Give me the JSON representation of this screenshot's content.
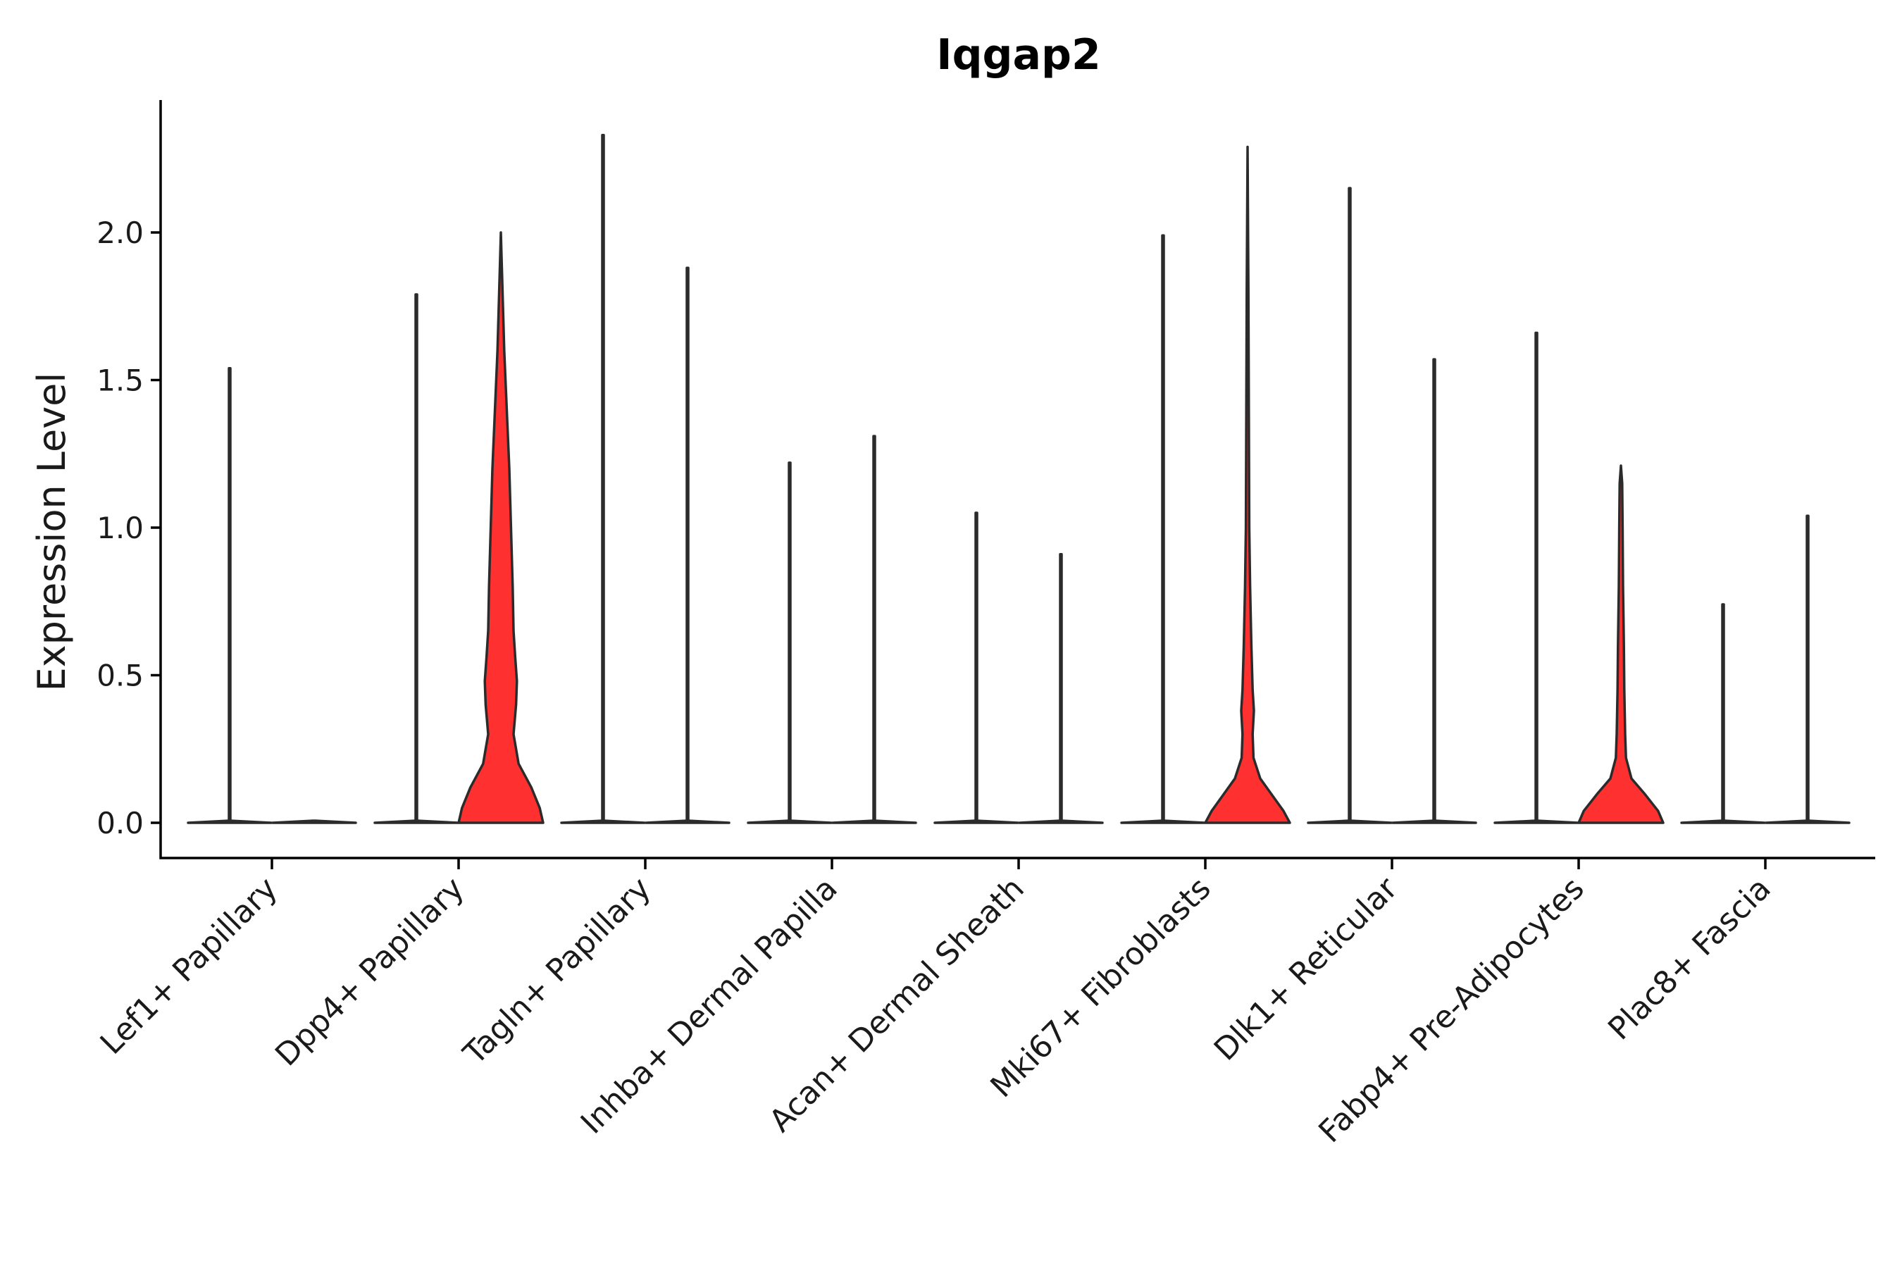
{
  "chart_data": {
    "type": "violin",
    "title": "Iqgap2",
    "xlabel": "",
    "ylabel": "Expression Level",
    "ylim": [
      -0.12,
      2.45
    ],
    "yticks": [
      0.0,
      0.5,
      1.0,
      1.5,
      2.0
    ],
    "ytick_labels": [
      "0.0",
      "0.5",
      "1.0",
      "1.5",
      "2.0"
    ],
    "grid": false,
    "legend": "none",
    "split_note": "each category shows two violins: left = condition A, right = condition B",
    "fill_color_positive": "#ff3030",
    "fill_color_zero": "#ffffff",
    "categories": [
      "Lef1+ Papillary",
      "Dpp4+ Papillary",
      "Tagln+ Papillary",
      "Inhba+ Dermal Papilla",
      "Acan+ Dermal Sheath",
      "Mki67+ Fibroblasts",
      "Dlk1+ Reticular",
      "Fabp4+ Pre-Adipocytes",
      "Plac8+ Fascia"
    ],
    "violins": [
      {
        "category": "Lef1+ Papillary",
        "group": "left",
        "max": 1.54,
        "filled": false,
        "density": []
      },
      {
        "category": "Lef1+ Papillary",
        "group": "right",
        "max": 0.0,
        "filled": false,
        "density": []
      },
      {
        "category": "Dpp4+ Papillary",
        "group": "left",
        "max": 1.79,
        "filled": false,
        "density": []
      },
      {
        "category": "Dpp4+ Papillary",
        "group": "right",
        "max": 2.0,
        "filled": true,
        "density": [
          [
            0.0,
            1.0
          ],
          [
            0.05,
            0.92
          ],
          [
            0.12,
            0.72
          ],
          [
            0.2,
            0.42
          ],
          [
            0.3,
            0.3
          ],
          [
            0.4,
            0.36
          ],
          [
            0.48,
            0.38
          ],
          [
            0.56,
            0.34
          ],
          [
            0.65,
            0.3
          ],
          [
            0.8,
            0.28
          ],
          [
            1.0,
            0.24
          ],
          [
            1.2,
            0.2
          ],
          [
            1.4,
            0.14
          ],
          [
            1.6,
            0.08
          ],
          [
            1.8,
            0.04
          ],
          [
            2.0,
            0.0
          ]
        ]
      },
      {
        "category": "Tagln+ Papillary",
        "group": "left",
        "max": 2.33,
        "filled": false,
        "density": []
      },
      {
        "category": "Tagln+ Papillary",
        "group": "right",
        "max": 1.88,
        "filled": false,
        "density": []
      },
      {
        "category": "Inhba+ Dermal Papilla",
        "group": "left",
        "max": 1.22,
        "filled": false,
        "density": []
      },
      {
        "category": "Inhba+ Dermal Papilla",
        "group": "right",
        "max": 1.31,
        "filled": false,
        "density": []
      },
      {
        "category": "Acan+ Dermal Sheath",
        "group": "left",
        "max": 1.05,
        "filled": false,
        "density": []
      },
      {
        "category": "Acan+ Dermal Sheath",
        "group": "right",
        "max": 0.91,
        "filled": false,
        "density": []
      },
      {
        "category": "Mki67+ Fibroblasts",
        "group": "left",
        "max": 1.99,
        "filled": false,
        "density": []
      },
      {
        "category": "Mki67+ Fibroblasts",
        "group": "right",
        "max": 2.29,
        "filled": true,
        "density": [
          [
            0.0,
            1.0
          ],
          [
            0.04,
            0.85
          ],
          [
            0.1,
            0.55
          ],
          [
            0.15,
            0.3
          ],
          [
            0.22,
            0.14
          ],
          [
            0.3,
            0.12
          ],
          [
            0.38,
            0.15
          ],
          [
            0.45,
            0.12
          ],
          [
            0.6,
            0.09
          ],
          [
            0.8,
            0.06
          ],
          [
            1.0,
            0.04
          ],
          [
            1.4,
            0.03
          ],
          [
            1.8,
            0.02
          ],
          [
            2.29,
            0.0
          ]
        ]
      },
      {
        "category": "Dlk1+ Reticular",
        "group": "left",
        "max": 2.15,
        "filled": false,
        "density": []
      },
      {
        "category": "Dlk1+ Reticular",
        "group": "right",
        "max": 1.57,
        "filled": false,
        "density": []
      },
      {
        "category": "Fabp4+ Pre-Adipocytes",
        "group": "left",
        "max": 1.66,
        "filled": false,
        "density": []
      },
      {
        "category": "Fabp4+ Pre-Adipocytes",
        "group": "right",
        "max": 1.21,
        "filled": true,
        "density": [
          [
            0.0,
            1.0
          ],
          [
            0.04,
            0.88
          ],
          [
            0.1,
            0.55
          ],
          [
            0.15,
            0.25
          ],
          [
            0.22,
            0.12
          ],
          [
            0.3,
            0.1
          ],
          [
            0.45,
            0.08
          ],
          [
            0.6,
            0.07
          ],
          [
            0.8,
            0.05
          ],
          [
            1.0,
            0.04
          ],
          [
            1.15,
            0.03
          ],
          [
            1.21,
            0.0
          ]
        ]
      },
      {
        "category": "Plac8+ Fascia",
        "group": "left",
        "max": 0.74,
        "filled": false,
        "density": []
      },
      {
        "category": "Plac8+ Fascia",
        "group": "right",
        "max": 1.04,
        "filled": false,
        "density": []
      }
    ]
  }
}
